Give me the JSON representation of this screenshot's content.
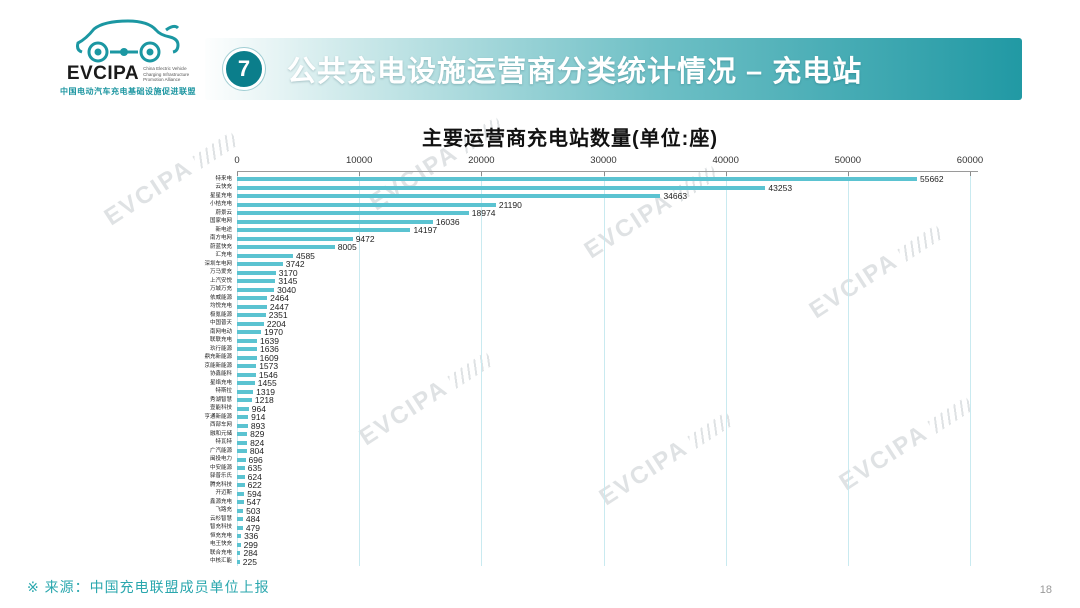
{
  "logo": {
    "brand": "EVCIPA",
    "english_lines": [
      "China Electric Vehicle",
      "Charging Infrastructure",
      "Promotion Alliance"
    ],
    "chinese": "中国电动汽车充电基础设施促进联盟"
  },
  "header": {
    "number": "7",
    "title": "公共充电设施运营商分类统计情况 – 充电站"
  },
  "chart_data": {
    "type": "bar",
    "orientation": "horizontal",
    "title": "主要运营商充电站数量(单位:座)",
    "xlim": [
      0,
      60000
    ],
    "x_ticks": [
      0,
      10000,
      20000,
      30000,
      40000,
      50000,
      60000
    ],
    "grid": true,
    "bar_color": "#5bc3d1",
    "categories": [
      "特来电",
      "云快充",
      "星星充电",
      "小桔充电",
      "蔚景云",
      "国家电网",
      "新电途",
      "南方电网",
      "蔚蓝快充",
      "汇充电",
      "深圳车电网",
      "万马爱充",
      "上汽安悦",
      "万城万充",
      "依威能源",
      "均悦充电",
      "极氪能源",
      "中国普天",
      "南网电动",
      "联联充电",
      "玖行能源",
      "鼎充新能源",
      "京能新能源",
      "协鑫能科",
      "星络充电",
      "特斯拉",
      "秀湖智慧",
      "壹能科技",
      "亨通新能源",
      "西部车网",
      "融和元储",
      "特瓦特",
      "广汽能源",
      "闽投电力",
      "中安能源",
      "驿普乐氏",
      "腾充科技",
      "开迈斯",
      "鑫源充电",
      "飞路充",
      "云杉智慧",
      "智充科技",
      "恒充充电",
      "电王快充",
      "联合充电",
      "中核汇能"
    ],
    "values": [
      55662,
      43253,
      34663,
      21190,
      18974,
      16036,
      14197,
      9472,
      8005,
      4585,
      3742,
      3170,
      3145,
      3040,
      2464,
      2447,
      2351,
      2204,
      1970,
      1639,
      1636,
      1609,
      1573,
      1546,
      1455,
      1319,
      1218,
      964,
      914,
      893,
      829,
      824,
      804,
      696,
      635,
      624,
      622,
      594,
      547,
      503,
      484,
      479,
      336,
      299,
      284,
      225
    ]
  },
  "watermark": {
    "text": "EVCIPA"
  },
  "footer": {
    "source": "※ 来源：中国充电联盟成员单位上报"
  },
  "page_number": "18",
  "colors": {
    "accent": "#2199a4",
    "bar": "#5bc3d1",
    "grid": "#c9eaf0",
    "footer_text": "#2aa7ae"
  }
}
